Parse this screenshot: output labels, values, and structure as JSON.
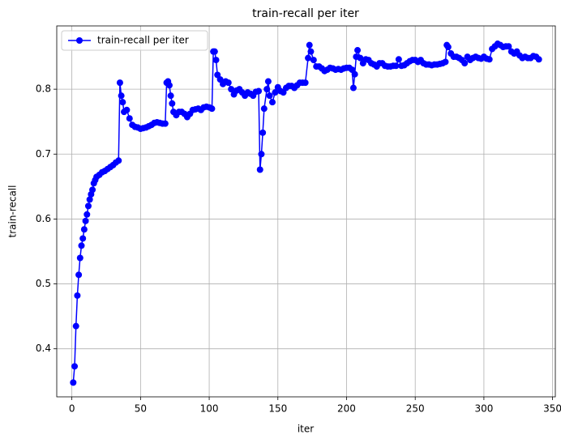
{
  "chart_data": {
    "type": "line",
    "title": "train-recall per iter",
    "xlabel": "iter",
    "ylabel": "train-recall",
    "x": [
      1,
      2,
      3,
      4,
      5,
      6,
      7,
      8,
      9,
      10,
      11,
      12,
      13,
      14,
      15,
      16,
      17,
      18,
      20,
      22,
      24,
      26,
      28,
      30,
      32,
      34,
      35,
      36,
      37,
      38,
      40,
      42,
      44,
      46,
      48,
      50,
      52,
      54,
      56,
      58,
      60,
      62,
      64,
      66,
      68,
      69,
      70,
      71,
      72,
      73,
      74,
      76,
      78,
      80,
      82,
      84,
      86,
      88,
      90,
      92,
      94,
      96,
      98,
      100,
      102,
      103,
      104,
      105,
      106,
      108,
      110,
      112,
      114,
      116,
      118,
      120,
      122,
      124,
      126,
      128,
      130,
      132,
      134,
      136,
      137,
      138,
      139,
      140,
      142,
      143,
      144,
      146,
      148,
      150,
      152,
      154,
      156,
      158,
      160,
      162,
      164,
      166,
      168,
      170,
      172,
      173,
      174,
      176,
      178,
      180,
      182,
      184,
      186,
      188,
      190,
      192,
      194,
      196,
      198,
      200,
      202,
      204,
      205,
      206,
      207,
      208,
      210,
      212,
      214,
      216,
      218,
      220,
      222,
      224,
      226,
      228,
      230,
      232,
      234,
      236,
      238,
      240,
      242,
      244,
      246,
      248,
      250,
      252,
      254,
      256,
      258,
      260,
      262,
      264,
      266,
      268,
      270,
      272,
      273,
      274,
      276,
      278,
      280,
      282,
      284,
      286,
      288,
      290,
      292,
      294,
      296,
      298,
      300,
      302,
      304,
      306,
      308,
      310,
      312,
      314,
      316,
      318,
      320,
      322,
      324,
      326,
      328,
      330,
      332,
      334,
      336,
      338,
      340
    ],
    "series": [
      {
        "name": "train-recall per iter",
        "color": "#0000ff",
        "values": [
          0.348,
          0.373,
          0.435,
          0.482,
          0.514,
          0.54,
          0.559,
          0.57,
          0.584,
          0.597,
          0.607,
          0.62,
          0.63,
          0.638,
          0.645,
          0.655,
          0.66,
          0.665,
          0.668,
          0.672,
          0.674,
          0.677,
          0.68,
          0.683,
          0.687,
          0.69,
          0.81,
          0.79,
          0.78,
          0.765,
          0.768,
          0.755,
          0.745,
          0.742,
          0.741,
          0.739,
          0.74,
          0.741,
          0.743,
          0.745,
          0.748,
          0.749,
          0.748,
          0.747,
          0.747,
          0.81,
          0.812,
          0.806,
          0.79,
          0.778,
          0.765,
          0.76,
          0.765,
          0.765,
          0.762,
          0.757,
          0.762,
          0.768,
          0.769,
          0.77,
          0.768,
          0.772,
          0.773,
          0.772,
          0.77,
          0.858,
          0.858,
          0.845,
          0.822,
          0.815,
          0.808,
          0.812,
          0.81,
          0.8,
          0.792,
          0.798,
          0.8,
          0.795,
          0.79,
          0.795,
          0.793,
          0.79,
          0.796,
          0.797,
          0.676,
          0.7,
          0.733,
          0.77,
          0.8,
          0.812,
          0.79,
          0.78,
          0.795,
          0.803,
          0.797,
          0.795,
          0.802,
          0.805,
          0.805,
          0.802,
          0.806,
          0.81,
          0.81,
          0.81,
          0.848,
          0.868,
          0.858,
          0.845,
          0.835,
          0.835,
          0.832,
          0.828,
          0.83,
          0.833,
          0.832,
          0.83,
          0.831,
          0.83,
          0.832,
          0.833,
          0.833,
          0.83,
          0.802,
          0.823,
          0.85,
          0.86,
          0.848,
          0.84,
          0.846,
          0.845,
          0.84,
          0.838,
          0.835,
          0.84,
          0.84,
          0.836,
          0.835,
          0.835,
          0.836,
          0.836,
          0.846,
          0.836,
          0.837,
          0.84,
          0.843,
          0.845,
          0.845,
          0.842,
          0.845,
          0.84,
          0.838,
          0.838,
          0.837,
          0.838,
          0.838,
          0.839,
          0.84,
          0.842,
          0.868,
          0.865,
          0.855,
          0.85,
          0.85,
          0.848,
          0.845,
          0.84,
          0.85,
          0.845,
          0.848,
          0.85,
          0.848,
          0.847,
          0.85,
          0.847,
          0.846,
          0.862,
          0.866,
          0.87,
          0.868,
          0.865,
          0.866,
          0.866,
          0.858,
          0.855,
          0.858,
          0.852,
          0.848,
          0.85,
          0.848,
          0.848,
          0.851,
          0.85,
          0.846
        ]
      }
    ],
    "xlim": [
      -11,
      352
    ],
    "xticks": [
      0,
      50,
      100,
      150,
      200,
      250,
      300,
      350
    ],
    "ylim": [
      0.326,
      0.8975
    ],
    "yticks": [
      0.4,
      0.5,
      0.6,
      0.7,
      0.8
    ],
    "grid": true,
    "legend": "upper left"
  }
}
